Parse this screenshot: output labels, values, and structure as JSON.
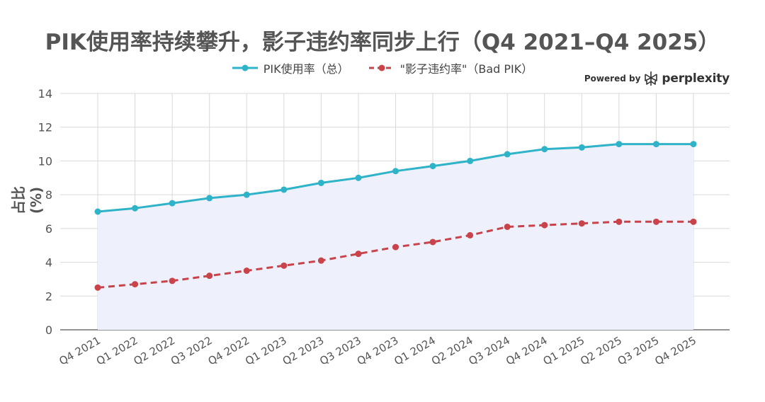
{
  "chart_data": {
    "type": "line",
    "title": "PIK使用率持续攀升，影子违约率同步上行（Q4 2021–Q4 2025）",
    "ylabel": "占比 (%)",
    "xlabel": "",
    "ylim": [
      0,
      14
    ],
    "yticks": [
      0,
      2,
      4,
      6,
      8,
      10,
      12,
      14
    ],
    "grid": true,
    "legend_position": "top-center",
    "categories": [
      "Q4 2021",
      "Q1 2022",
      "Q2 2022",
      "Q3 2022",
      "Q4 2022",
      "Q1 2023",
      "Q2 2023",
      "Q3 2023",
      "Q4 2023",
      "Q1 2024",
      "Q2 2024",
      "Q3 2024",
      "Q4 2024",
      "Q1 2025",
      "Q2 2025",
      "Q3 2025",
      "Q4 2025"
    ],
    "series": [
      {
        "name": "PIK使用率（总）",
        "color": "#2fb3c8",
        "style": "solid",
        "filled": true,
        "fill_color": "#eef0fb",
        "values": [
          7.0,
          7.2,
          7.5,
          7.8,
          8.0,
          8.3,
          8.7,
          9.0,
          9.4,
          9.7,
          10.0,
          10.4,
          10.7,
          10.8,
          11.0,
          11.0,
          11.0
        ]
      },
      {
        "name": "\"影子违约率\"（Bad PIK）",
        "color": "#c9434b",
        "style": "dashed",
        "filled": false,
        "values": [
          2.5,
          2.7,
          2.9,
          3.2,
          3.5,
          3.8,
          4.1,
          4.5,
          4.9,
          5.2,
          5.6,
          6.1,
          6.2,
          6.3,
          6.4,
          6.4,
          6.4
        ]
      }
    ]
  },
  "branding": {
    "prefix": "Powered by",
    "name": "perplexity",
    "logo_icon": "perplexity-logo-icon"
  }
}
